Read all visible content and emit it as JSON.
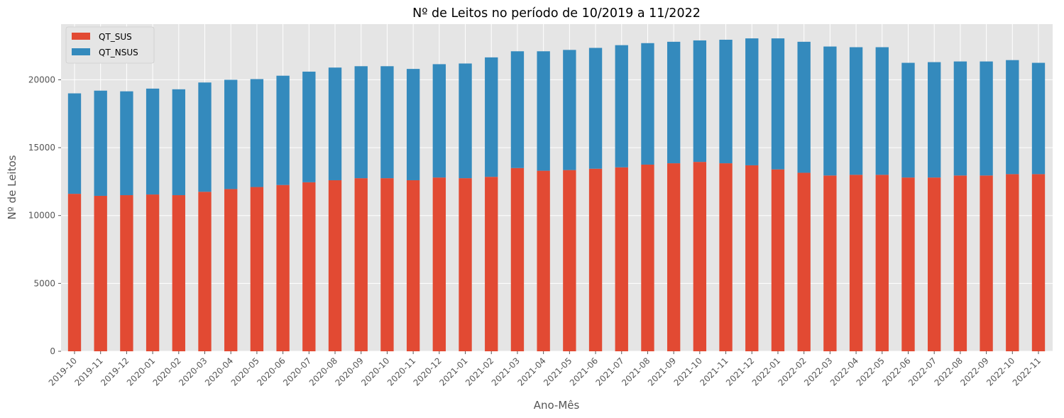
{
  "chart_data": {
    "type": "bar",
    "stacked": true,
    "title": "Nº de Leitos no período de 10/2019 a 11/2022",
    "xlabel": "Ano-Mês",
    "ylabel": "Nº de Leitos",
    "ylim": [
      0,
      24100
    ],
    "yticks": [
      0,
      5000,
      10000,
      15000,
      20000
    ],
    "grid": true,
    "legend_position": "top-left",
    "categories": [
      "2019-10",
      "2019-11",
      "2019-12",
      "2020-01",
      "2020-02",
      "2020-03",
      "2020-04",
      "2020-05",
      "2020-06",
      "2020-07",
      "2020-08",
      "2020-09",
      "2020-10",
      "2020-11",
      "2020-12",
      "2021-01",
      "2021-02",
      "2021-03",
      "2021-04",
      "2021-05",
      "2021-06",
      "2021-07",
      "2021-08",
      "2021-09",
      "2021-10",
      "2021-11",
      "2021-12",
      "2022-01",
      "2022-02",
      "2022-03",
      "2022-04",
      "2022-05",
      "2022-06",
      "2022-07",
      "2022-08",
      "2022-09",
      "2022-10",
      "2022-11"
    ],
    "series": [
      {
        "name": "QT_SUS",
        "color": "#e24a33",
        "values": [
          11600,
          11450,
          11500,
          11550,
          11500,
          11750,
          11950,
          12100,
          12250,
          12450,
          12600,
          12750,
          12750,
          12600,
          12800,
          12750,
          12850,
          13500,
          13300,
          13350,
          13450,
          13550,
          13750,
          13850,
          13950,
          13850,
          13700,
          13400,
          13150,
          12950,
          13000,
          13000,
          12800,
          12800,
          12950,
          12950,
          13050,
          13050
        ]
      },
      {
        "name": "QT_NSUS",
        "color": "#348abd",
        "values": [
          7400,
          7750,
          7650,
          7800,
          7800,
          8050,
          8050,
          7950,
          8050,
          8150,
          8300,
          8250,
          8250,
          8200,
          8350,
          8450,
          8800,
          8600,
          8800,
          8850,
          8900,
          9000,
          8950,
          8950,
          8950,
          9100,
          9350,
          9650,
          9650,
          9500,
          9400,
          9400,
          8450,
          8500,
          8400,
          8400,
          8400,
          8200
        ]
      }
    ]
  }
}
